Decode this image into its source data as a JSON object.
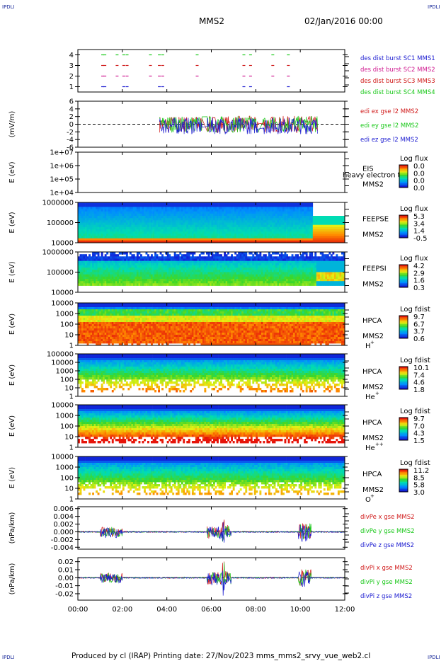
{
  "corner_label": "IPDLI",
  "header": {
    "mission": "MMS2",
    "date": "02/Jan/2016 00:00"
  },
  "footer": "Produced by cl (IRAP)   Printing date: 27/Nov/2023   mms_mms2_srvy_vue_web2.cl",
  "chart_data": [
    {
      "id": "burst",
      "type": "scatter",
      "yticks": [
        "4",
        "3",
        "2",
        "1"
      ],
      "ylim": [
        0.5,
        4.5
      ],
      "series": [
        {
          "name": "des dist burst SC1 MMS1",
          "color": "#1a1ad0",
          "y": 1
        },
        {
          "name": "des dist burst SC2 MMS2",
          "color": "#d01a90",
          "y": 2
        },
        {
          "name": "des dist burst SC3 MMS3",
          "color": "#d01a1a",
          "y": 3
        },
        {
          "name": "des dist burst SC4 MMS4",
          "color": "#1ac81a",
          "y": 4
        }
      ],
      "burst_times_h": [
        1.05,
        1.15,
        1.7,
        2.0,
        2.15,
        3.2,
        3.6,
        3.75,
        5.3,
        7.4,
        7.7,
        8.7,
        9.4
      ]
    },
    {
      "id": "edi",
      "type": "line",
      "ylabel": "(mV/m)",
      "yticks": [
        "6",
        "4",
        "2",
        "0",
        "-2",
        "-4",
        "-6"
      ],
      "ylim": [
        -6,
        6
      ],
      "series": [
        {
          "name": "edi ex gse l2 MMS2",
          "color": "#d01a1a"
        },
        {
          "name": "edi ey gse l2 MMS2",
          "color": "#1ac81a"
        },
        {
          "name": "edi ez gse l2 MMS2",
          "color": "#1a1ad0"
        }
      ]
    },
    {
      "id": "eis",
      "type": "heatmap",
      "ylabel": "E (eV)",
      "yticks": [
        "1e+07",
        "1e+06",
        "1e+05",
        "1e+04"
      ],
      "instrument": "EIS",
      "spacecraft": "MMS2",
      "overlay_text": "heavy electron to",
      "cbar_title": "Log flux",
      "cbar_ticks": [
        "0.0",
        "0.0",
        "0.0",
        "0.0"
      ]
    },
    {
      "id": "feepse",
      "type": "heatmap",
      "ylabel": "E (eV)",
      "yticks": [
        "1000000",
        "100000",
        "10000"
      ],
      "instrument": "FEEPSE",
      "spacecraft": "MMS2",
      "cbar_title": "Log flux",
      "cbar_ticks": [
        "5.3",
        "3.4",
        "1.4",
        "-0.5"
      ]
    },
    {
      "id": "feepsi",
      "type": "heatmap",
      "ylabel": "E (eV)",
      "yticks": [
        "1000000",
        "100000",
        "10000"
      ],
      "instrument": "FEEPSI",
      "spacecraft": "MMS2",
      "cbar_title": "Log flux",
      "cbar_ticks": [
        "4.2",
        "2.9",
        "1.6",
        "0.3"
      ]
    },
    {
      "id": "hpca_h",
      "type": "heatmap",
      "ylabel": "E (eV)",
      "yticks": [
        "10000",
        "1000",
        "100",
        "10",
        "1"
      ],
      "instrument": "HPCA",
      "spacecraft": "MMS2",
      "species": "H",
      "charge": "+",
      "cbar_title": "Log fdist",
      "cbar_ticks": [
        "9.7",
        "6.7",
        "3.7",
        "0.6"
      ]
    },
    {
      "id": "hpca_he",
      "type": "heatmap",
      "ylabel": "E (eV)",
      "yticks": [
        "100000",
        "10000",
        "1000",
        "100",
        "10",
        "1"
      ],
      "instrument": "HPCA",
      "spacecraft": "MMS2",
      "species": "He",
      "charge": "+",
      "cbar_title": "Log fdist",
      "cbar_ticks": [
        "10.1",
        "7.4",
        "4.6",
        "1.8"
      ]
    },
    {
      "id": "hpca_hepp",
      "type": "heatmap",
      "ylabel": "E (eV)",
      "yticks": [
        "10000",
        "1000",
        "100",
        "10",
        "1"
      ],
      "instrument": "HPCA",
      "spacecraft": "MMS2",
      "species": "He",
      "charge": "++",
      "cbar_title": "Log fdist",
      "cbar_ticks": [
        "9.7",
        "7.0",
        "4.3",
        "1.5"
      ]
    },
    {
      "id": "hpca_o",
      "type": "heatmap",
      "ylabel": "E (eV)",
      "yticks": [
        "10000",
        "1000",
        "100",
        "10",
        "1"
      ],
      "instrument": "HPCA",
      "spacecraft": "MMS2",
      "species": "O",
      "charge": "+",
      "cbar_title": "Log fdist",
      "cbar_ticks": [
        "11.2",
        "8.5",
        "5.8",
        "3.0"
      ]
    },
    {
      "id": "divpe",
      "type": "line",
      "ylabel": "(nPa/km)",
      "yticks": [
        "0.006",
        "0.004",
        "0.002",
        "0.000",
        "-0.002",
        "-0.004"
      ],
      "ylim": [
        -0.0045,
        0.0065
      ],
      "series": [
        {
          "name": "divPe x gse MMS2",
          "color": "#d01a1a"
        },
        {
          "name": "divPe y gse MMS2",
          "color": "#1ac81a"
        },
        {
          "name": "divPe z gse MMS2",
          "color": "#1a1ad0"
        }
      ]
    },
    {
      "id": "divpi",
      "type": "line",
      "ylabel": "(nPa/km)",
      "yticks": [
        "0.02",
        "0.01",
        "0.00",
        "-0.01",
        "-0.02"
      ],
      "ylim": [
        -0.028,
        0.025
      ],
      "series": [
        {
          "name": "divPi x gse MMS2",
          "color": "#d01a1a"
        },
        {
          "name": "divPi y gse MMS2",
          "color": "#1ac81a"
        },
        {
          "name": "divPi z gse MMS2",
          "color": "#1a1ad0"
        }
      ]
    }
  ],
  "x_axis": {
    "ticks": [
      "00:00",
      "02:00",
      "04:00",
      "06:00",
      "08:00",
      "10:00",
      "12:00"
    ],
    "range_h": [
      0,
      12
    ]
  }
}
